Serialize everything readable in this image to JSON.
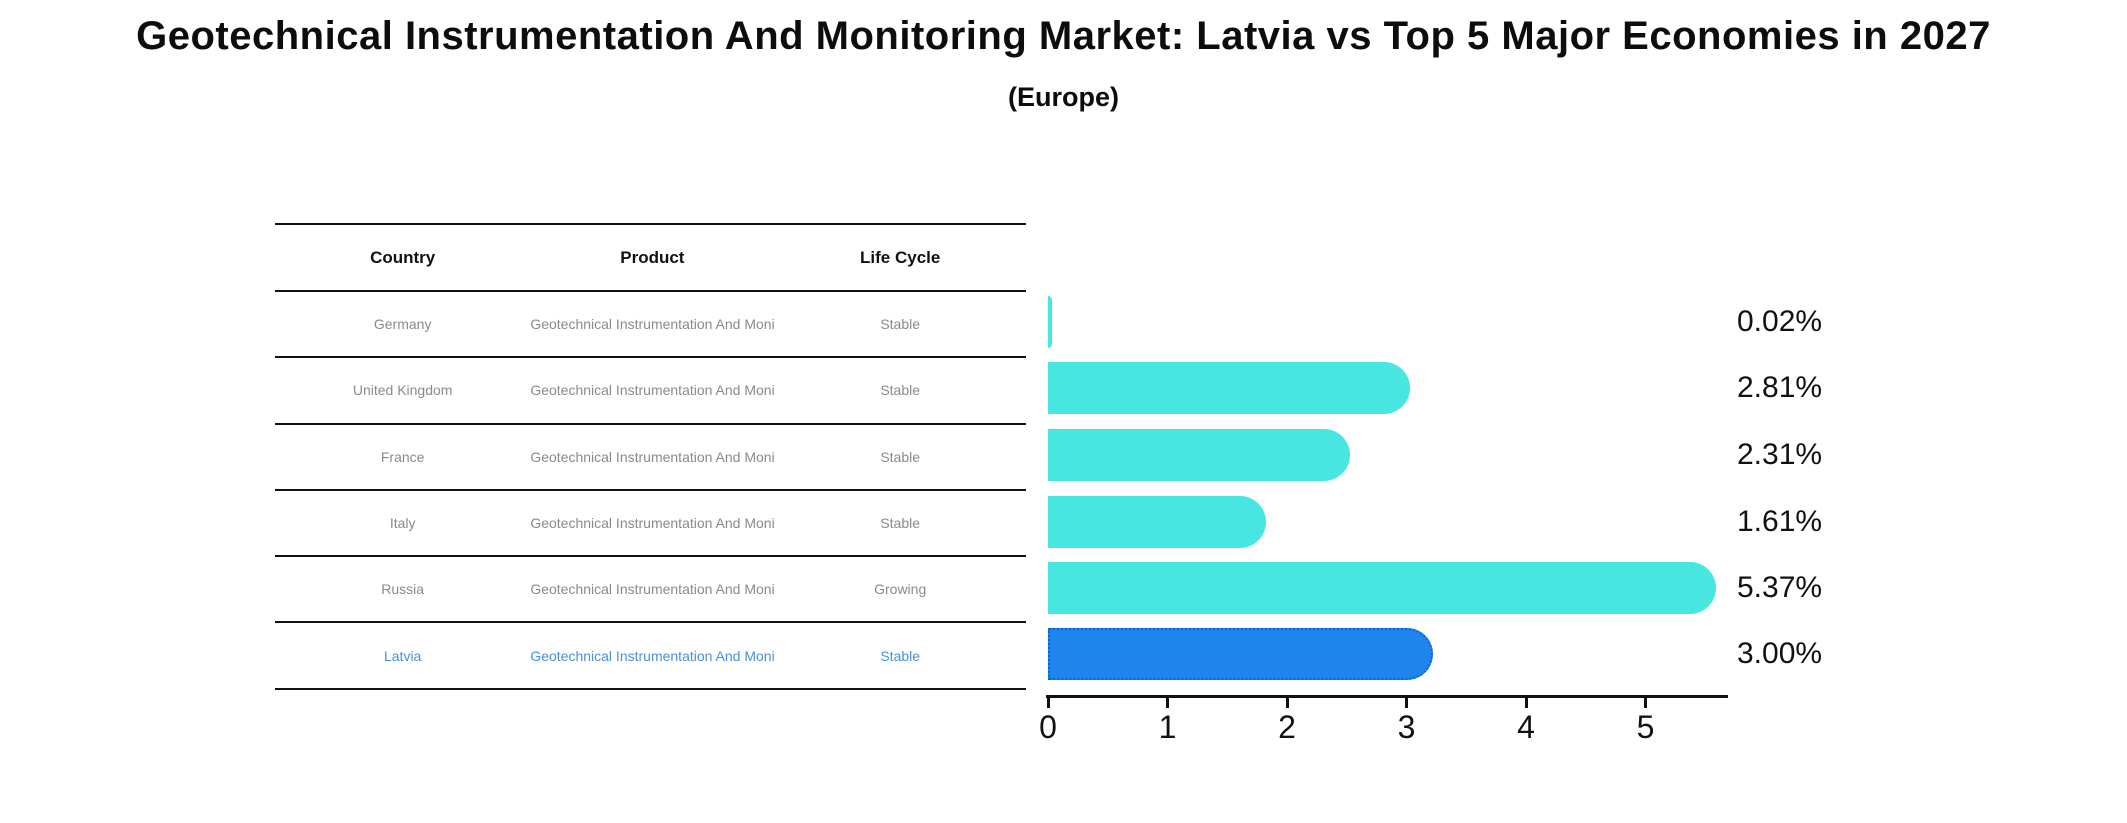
{
  "title": "Geotechnical Instrumentation And Monitoring Market: Latvia vs Top 5 Major Economies in 2027",
  "subtitle": "(Europe)",
  "table": {
    "headers": [
      "Country",
      "Product",
      "Life Cycle"
    ],
    "rows": [
      {
        "country": "Germany",
        "product": "Geotechnical Instrumentation And Monitoring",
        "life_cycle": "Stable",
        "highlight": false
      },
      {
        "country": "United Kingdom",
        "product": "Geotechnical Instrumentation And Monitoring",
        "life_cycle": "Stable",
        "highlight": false
      },
      {
        "country": "France",
        "product": "Geotechnical Instrumentation And Monitoring",
        "life_cycle": "Stable",
        "highlight": false
      },
      {
        "country": "Italy",
        "product": "Geotechnical Instrumentation And Monitoring",
        "life_cycle": "Stable",
        "highlight": false
      },
      {
        "country": "Russia",
        "product": "Geotechnical Instrumentation And Monitoring",
        "life_cycle": "Growing",
        "highlight": false
      },
      {
        "country": "Latvia",
        "product": "Geotechnical Instrumentation And Monitoring",
        "life_cycle": "Stable",
        "highlight": true
      }
    ]
  },
  "chart_data": {
    "type": "bar",
    "orientation": "horizontal",
    "title": "Geotechnical Instrumentation And Monitoring Market: Latvia vs Top 5 Major Economies in 2027",
    "subtitle": "(Europe)",
    "categories": [
      "Germany",
      "United Kingdom",
      "France",
      "Italy",
      "Russia",
      "Latvia"
    ],
    "values": [
      0.02,
      2.81,
      2.31,
      1.61,
      5.37,
      3.0
    ],
    "value_labels": [
      "0.02%",
      "2.81%",
      "2.31%",
      "1.61%",
      "5.37%",
      "3.00%"
    ],
    "xticks": [
      "0",
      "1",
      "2",
      "3",
      "4",
      "5"
    ],
    "xlim": [
      0,
      5.68
    ],
    "xlabel": "",
    "ylabel": "",
    "grid": false,
    "legend": null,
    "highlight_index": 5,
    "colors": {
      "bar": "#47e6e0",
      "highlight_bar": "#1f85ee",
      "highlight_border": "#1260cf",
      "highlight_text": "#4a90d9",
      "row_text": "#8a8a8a",
      "axis_text": "#111111"
    }
  }
}
